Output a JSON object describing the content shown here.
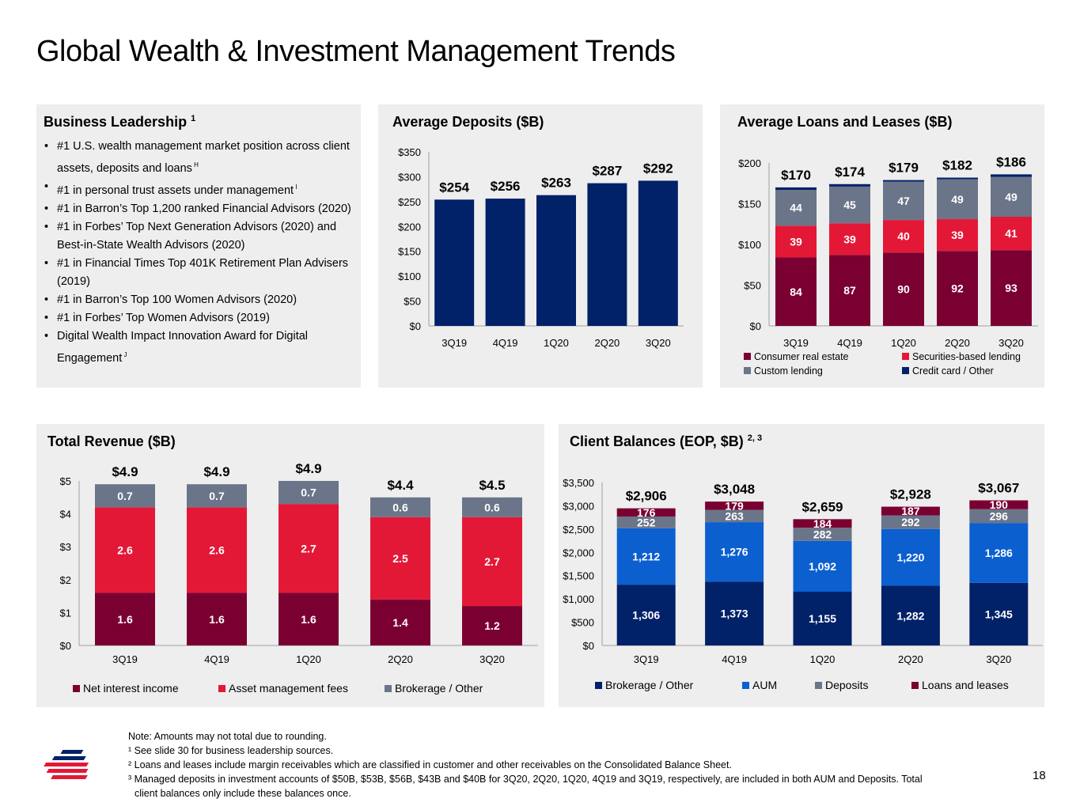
{
  "page": {
    "title": "Global Wealth & Investment Management Trends",
    "page_number": "18"
  },
  "colors": {
    "navy": "#012169",
    "maroon": "#7a0032",
    "red": "#e31837",
    "gray": "#6b7589",
    "aum_blue": "#0b5fcf",
    "panel_bg": "#eeeeee"
  },
  "business_leadership": {
    "title": "Business Leadership",
    "title_sup": "1",
    "items": [
      {
        "text": "#1 U.S. wealth management market position across client assets, deposits and loans",
        "sup": "H"
      },
      {
        "text": "#1 in personal trust assets under management",
        "sup": "I"
      },
      {
        "text": "#1 in Barron’s Top 1,200 ranked Financial Advisors (2020)",
        "sup": ""
      },
      {
        "text": "#1 in Forbes’ Top Next Generation Advisors (2020) and Best-in-State Wealth Advisors (2020)",
        "sup": ""
      },
      {
        "text": "#1 in Financial Times Top 401K Retirement Plan Advisers (2019)",
        "sup": ""
      },
      {
        "text": "#1 in Barron’s Top 100 Women Advisors (2020)",
        "sup": ""
      },
      {
        "text": "#1 in Forbes’ Top Women Advisors (2019)",
        "sup": ""
      },
      {
        "text": "Digital Wealth Impact Innovation Award for Digital Engagement",
        "sup": "J"
      }
    ]
  },
  "chart_data": [
    {
      "id": "deposits",
      "type": "bar",
      "title": "Average Deposits ($B)",
      "categories": [
        "3Q19",
        "4Q19",
        "1Q20",
        "2Q20",
        "3Q20"
      ],
      "values": [
        254,
        256,
        263,
        287,
        292
      ],
      "total_labels": [
        "$254",
        "$256",
        "$263",
        "$287",
        "$292"
      ],
      "ylim": [
        0,
        350
      ],
      "yticks": [
        0,
        50,
        100,
        150,
        200,
        250,
        300,
        350
      ],
      "ytick_labels": [
        "$0",
        "$50",
        "$100",
        "$150",
        "$200",
        "$250",
        "$300",
        "$350"
      ],
      "xlabel": "",
      "ylabel": "",
      "grid": false
    },
    {
      "id": "loans",
      "type": "bar",
      "stacked": true,
      "title": "Average Loans and Leases ($B)",
      "categories": [
        "3Q19",
        "4Q19",
        "1Q20",
        "2Q20",
        "3Q20"
      ],
      "series": [
        {
          "name": "Consumer real estate",
          "color_key": "maroon",
          "values": [
            84,
            87,
            90,
            92,
            93
          ],
          "show_labels": true
        },
        {
          "name": "Securities-based lending",
          "color_key": "red",
          "values": [
            39,
            39,
            40,
            39,
            41
          ],
          "show_labels": true
        },
        {
          "name": "Custom lending",
          "color_key": "gray",
          "values": [
            44,
            45,
            47,
            49,
            49
          ],
          "show_labels": true
        },
        {
          "name": "Credit card / Other",
          "color_key": "navy",
          "values": [
            3,
            3,
            2,
            2,
            3
          ],
          "show_labels": false
        }
      ],
      "total_labels": [
        "$170",
        "$174",
        "$179",
        "$182",
        "$186"
      ],
      "ylim": [
        0,
        200
      ],
      "yticks": [
        0,
        50,
        100,
        150,
        200
      ],
      "ytick_labels": [
        "$0",
        "$50",
        "$100",
        "$150",
        "$200"
      ],
      "legend": "bottom",
      "grid": false
    },
    {
      "id": "revenue",
      "type": "bar",
      "stacked": true,
      "title": "Total Revenue ($B)",
      "categories": [
        "3Q19",
        "4Q19",
        "1Q20",
        "2Q20",
        "3Q20"
      ],
      "series": [
        {
          "name": "Net interest income",
          "color_key": "maroon",
          "values": [
            1.6,
            1.6,
            1.6,
            1.4,
            1.2
          ],
          "show_labels": true
        },
        {
          "name": "Asset management fees",
          "color_key": "red",
          "values": [
            2.6,
            2.6,
            2.7,
            2.5,
            2.7
          ],
          "show_labels": true
        },
        {
          "name": "Brokerage / Other",
          "color_key": "gray",
          "values": [
            0.7,
            0.7,
            0.7,
            0.6,
            0.6
          ],
          "show_labels": true
        }
      ],
      "total_labels": [
        "$4.9",
        "$4.9",
        "$4.9",
        "$4.4",
        "$4.5"
      ],
      "ylim": [
        0,
        5
      ],
      "yticks": [
        0,
        1,
        2,
        3,
        4,
        5
      ],
      "ytick_labels": [
        "$0",
        "$1",
        "$2",
        "$3",
        "$4",
        "$5"
      ],
      "legend": "bottom",
      "grid": false
    },
    {
      "id": "client",
      "type": "bar",
      "stacked": true,
      "title": "Client Balances (EOP, $B)",
      "title_sup": "2, 3",
      "categories": [
        "3Q19",
        "4Q19",
        "1Q20",
        "2Q20",
        "3Q20"
      ],
      "series": [
        {
          "name": "Brokerage / Other",
          "color_key": "navy",
          "values": [
            1306,
            1373,
            1155,
            1282,
            1345
          ],
          "show_labels": true
        },
        {
          "name": "AUM",
          "color_key": "aum_blue",
          "values": [
            1212,
            1276,
            1092,
            1220,
            1286
          ],
          "show_labels": true
        },
        {
          "name": "Deposits",
          "color_key": "gray",
          "values": [
            252,
            263,
            282,
            292,
            296
          ],
          "show_labels": true
        },
        {
          "name": "Loans and leases",
          "color_key": "maroon",
          "values": [
            176,
            179,
            184,
            187,
            190
          ],
          "show_labels": true
        }
      ],
      "total_labels": [
        "$2,906",
        "$3,048",
        "$2,659",
        "$2,928",
        "$3,067"
      ],
      "ylim": [
        0,
        3500
      ],
      "yticks": [
        0,
        500,
        1000,
        1500,
        2000,
        2500,
        3000,
        3500
      ],
      "ytick_labels": [
        "$0",
        "$500",
        "$1,000",
        "$1,500",
        "$2,000",
        "$2,500",
        "$3,000",
        "$3,500"
      ],
      "legend": "bottom",
      "grid": false
    }
  ],
  "footnotes": [
    "Note: Amounts may not total due to rounding.",
    "¹ See slide 30 for business leadership sources.",
    "² Loans and leases include margin receivables which are classified in customer and other receivables on the Consolidated Balance Sheet.",
    "³ Managed deposits in investment accounts of $50B, $53B, $56B, $43B and $40B for 3Q20, 2Q20, 1Q20, 4Q19 and 3Q19, respectively, are included in both AUM and Deposits. Total",
    "client balances only include these balances once."
  ]
}
